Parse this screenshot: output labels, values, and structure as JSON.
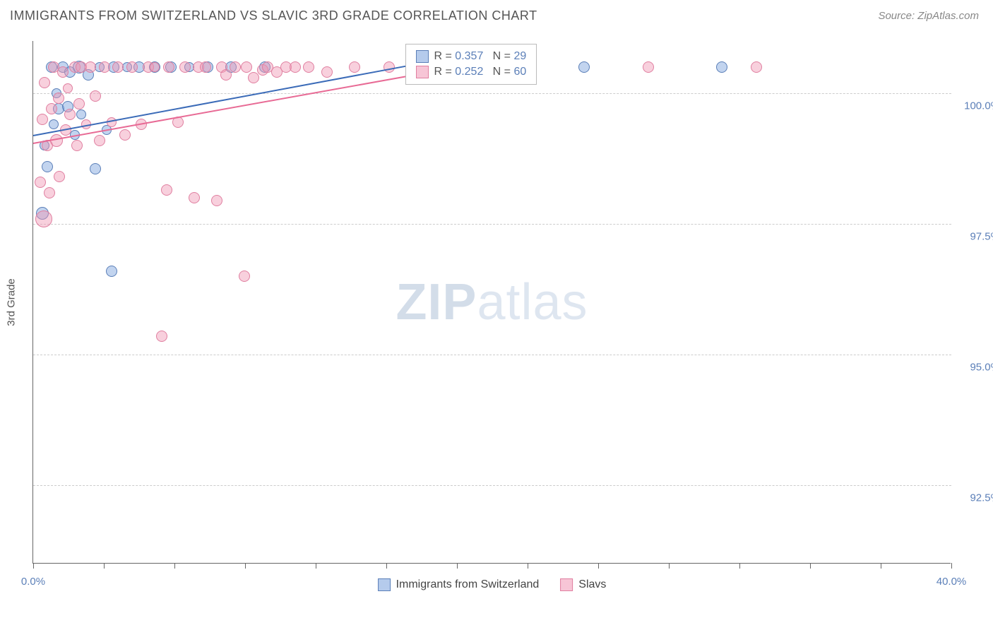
{
  "title": "IMMIGRANTS FROM SWITZERLAND VS SLAVIC 3RD GRADE CORRELATION CHART",
  "source": "Source: ZipAtlas.com",
  "ylabel": "3rd Grade",
  "watermark_a": "ZIP",
  "watermark_b": "atlas",
  "chart": {
    "type": "scatter",
    "xlim": [
      0,
      40
    ],
    "ylim": [
      91,
      101
    ],
    "x_axis_label_min": "0.0%",
    "x_axis_label_max": "40.0%",
    "yticks": [
      {
        "v": 100.0,
        "label": "100.0%"
      },
      {
        "v": 97.5,
        "label": "97.5%"
      },
      {
        "v": 95.0,
        "label": "95.0%"
      },
      {
        "v": 92.5,
        "label": "92.5%"
      }
    ],
    "xtick_positions": [
      0,
      3.08,
      6.15,
      9.23,
      12.31,
      15.38,
      18.46,
      21.54,
      24.62,
      27.69,
      30.77,
      33.85,
      36.92,
      40
    ],
    "grid_color": "#cccccc",
    "axis_color": "#666666",
    "background_color": "#ffffff",
    "label_fontsize": 15,
    "title_fontsize": 18
  },
  "series": [
    {
      "name": "Immigrants from Switzerland",
      "color_fill": "rgba(120,160,220,0.45)",
      "color_stroke": "#5b7fb8",
      "trend_color": "#3b6bb8",
      "R": "0.357",
      "N": "29",
      "trend": {
        "x1": 0,
        "y1": 99.2,
        "x2": 16.5,
        "y2": 100.55
      },
      "points": [
        {
          "x": 0.4,
          "y": 97.7,
          "r": 9
        },
        {
          "x": 0.5,
          "y": 99.0,
          "r": 7
        },
        {
          "x": 0.6,
          "y": 98.6,
          "r": 8
        },
        {
          "x": 0.8,
          "y": 100.5,
          "r": 8
        },
        {
          "x": 0.9,
          "y": 99.4,
          "r": 7
        },
        {
          "x": 1.0,
          "y": 100.0,
          "r": 7
        },
        {
          "x": 1.1,
          "y": 99.7,
          "r": 8
        },
        {
          "x": 1.3,
          "y": 100.5,
          "r": 8
        },
        {
          "x": 1.5,
          "y": 99.75,
          "r": 8
        },
        {
          "x": 1.6,
          "y": 100.4,
          "r": 8
        },
        {
          "x": 1.8,
          "y": 99.2,
          "r": 7
        },
        {
          "x": 2.0,
          "y": 100.5,
          "r": 9
        },
        {
          "x": 2.1,
          "y": 99.6,
          "r": 7
        },
        {
          "x": 2.4,
          "y": 100.35,
          "r": 8
        },
        {
          "x": 2.7,
          "y": 98.55,
          "r": 8
        },
        {
          "x": 2.9,
          "y": 100.5,
          "r": 7
        },
        {
          "x": 3.2,
          "y": 99.3,
          "r": 7
        },
        {
          "x": 3.4,
          "y": 96.6,
          "r": 8
        },
        {
          "x": 3.5,
          "y": 100.5,
          "r": 8
        },
        {
          "x": 4.1,
          "y": 100.5,
          "r": 7
        },
        {
          "x": 4.6,
          "y": 100.5,
          "r": 8
        },
        {
          "x": 5.3,
          "y": 100.5,
          "r": 8
        },
        {
          "x": 6.0,
          "y": 100.5,
          "r": 8
        },
        {
          "x": 6.8,
          "y": 100.5,
          "r": 7
        },
        {
          "x": 7.6,
          "y": 100.5,
          "r": 8
        },
        {
          "x": 8.6,
          "y": 100.5,
          "r": 8
        },
        {
          "x": 10.1,
          "y": 100.5,
          "r": 8
        },
        {
          "x": 24.0,
          "y": 100.5,
          "r": 8
        },
        {
          "x": 30.0,
          "y": 100.5,
          "r": 8
        }
      ]
    },
    {
      "name": "Slavs",
      "color_fill": "rgba(240,150,180,0.45)",
      "color_stroke": "#e07fa0",
      "trend_color": "#e86a95",
      "R": "0.252",
      "N": "60",
      "trend": {
        "x1": 0,
        "y1": 99.05,
        "x2": 16.5,
        "y2": 100.35
      },
      "points": [
        {
          "x": 0.3,
          "y": 98.3,
          "r": 8
        },
        {
          "x": 0.4,
          "y": 99.5,
          "r": 8
        },
        {
          "x": 0.45,
          "y": 97.6,
          "r": 12
        },
        {
          "x": 0.5,
          "y": 100.2,
          "r": 8
        },
        {
          "x": 0.6,
          "y": 99.0,
          "r": 8
        },
        {
          "x": 0.7,
          "y": 98.1,
          "r": 8
        },
        {
          "x": 0.8,
          "y": 99.7,
          "r": 8
        },
        {
          "x": 0.9,
          "y": 100.5,
          "r": 8
        },
        {
          "x": 1.0,
          "y": 99.1,
          "r": 9
        },
        {
          "x": 1.1,
          "y": 99.9,
          "r": 8
        },
        {
          "x": 1.15,
          "y": 98.4,
          "r": 8
        },
        {
          "x": 1.3,
          "y": 100.4,
          "r": 8
        },
        {
          "x": 1.4,
          "y": 99.3,
          "r": 8
        },
        {
          "x": 1.5,
          "y": 100.1,
          "r": 7
        },
        {
          "x": 1.6,
          "y": 99.6,
          "r": 8
        },
        {
          "x": 1.8,
          "y": 100.5,
          "r": 8
        },
        {
          "x": 1.9,
          "y": 99.0,
          "r": 8
        },
        {
          "x": 2.0,
          "y": 99.8,
          "r": 8
        },
        {
          "x": 2.1,
          "y": 100.5,
          "r": 8
        },
        {
          "x": 2.3,
          "y": 99.4,
          "r": 7
        },
        {
          "x": 2.5,
          "y": 100.5,
          "r": 8
        },
        {
          "x": 2.7,
          "y": 99.95,
          "r": 8
        },
        {
          "x": 2.9,
          "y": 99.1,
          "r": 8
        },
        {
          "x": 3.1,
          "y": 100.5,
          "r": 8
        },
        {
          "x": 3.4,
          "y": 99.45,
          "r": 7
        },
        {
          "x": 3.7,
          "y": 100.5,
          "r": 8
        },
        {
          "x": 4.0,
          "y": 99.2,
          "r": 8
        },
        {
          "x": 4.3,
          "y": 100.5,
          "r": 8
        },
        {
          "x": 4.7,
          "y": 99.4,
          "r": 8
        },
        {
          "x": 5.0,
          "y": 100.5,
          "r": 8
        },
        {
          "x": 5.3,
          "y": 100.5,
          "r": 7
        },
        {
          "x": 5.6,
          "y": 95.35,
          "r": 8
        },
        {
          "x": 5.8,
          "y": 98.15,
          "r": 8
        },
        {
          "x": 5.9,
          "y": 100.5,
          "r": 8
        },
        {
          "x": 6.3,
          "y": 99.45,
          "r": 8
        },
        {
          "x": 6.6,
          "y": 100.5,
          "r": 8
        },
        {
          "x": 7.0,
          "y": 98.0,
          "r": 8
        },
        {
          "x": 7.2,
          "y": 100.5,
          "r": 8
        },
        {
          "x": 7.5,
          "y": 100.5,
          "r": 8
        },
        {
          "x": 8.0,
          "y": 97.95,
          "r": 8
        },
        {
          "x": 8.2,
          "y": 100.5,
          "r": 8
        },
        {
          "x": 8.4,
          "y": 100.35,
          "r": 8
        },
        {
          "x": 8.8,
          "y": 100.5,
          "r": 8
        },
        {
          "x": 9.2,
          "y": 96.5,
          "r": 8
        },
        {
          "x": 9.3,
          "y": 100.5,
          "r": 8
        },
        {
          "x": 9.6,
          "y": 100.3,
          "r": 8
        },
        {
          "x": 10.0,
          "y": 100.45,
          "r": 8
        },
        {
          "x": 10.2,
          "y": 100.5,
          "r": 8
        },
        {
          "x": 10.6,
          "y": 100.4,
          "r": 8
        },
        {
          "x": 11.0,
          "y": 100.5,
          "r": 8
        },
        {
          "x": 11.4,
          "y": 100.5,
          "r": 8
        },
        {
          "x": 12.0,
          "y": 100.5,
          "r": 8
        },
        {
          "x": 12.8,
          "y": 100.4,
          "r": 8
        },
        {
          "x": 14.0,
          "y": 100.5,
          "r": 8
        },
        {
          "x": 15.5,
          "y": 100.5,
          "r": 8
        },
        {
          "x": 17.5,
          "y": 100.5,
          "r": 8
        },
        {
          "x": 19.5,
          "y": 100.4,
          "r": 8
        },
        {
          "x": 21.5,
          "y": 100.5,
          "r": 8
        },
        {
          "x": 26.8,
          "y": 100.5,
          "r": 8
        },
        {
          "x": 31.5,
          "y": 100.5,
          "r": 8
        }
      ]
    }
  ],
  "legend": {
    "rows": [
      {
        "swatch_fill": "rgba(120,160,220,0.55)",
        "swatch_stroke": "#5b7fb8",
        "R_label": "R = ",
        "R": "0.357",
        "N_label": "N = ",
        "N": "29"
      },
      {
        "swatch_fill": "rgba(240,150,180,0.55)",
        "swatch_stroke": "#e07fa0",
        "R_label": "R = ",
        "R": "0.252",
        "N_label": "N = ",
        "N": "60"
      }
    ]
  },
  "bottom_legend": [
    {
      "swatch_fill": "rgba(120,160,220,0.55)",
      "swatch_stroke": "#5b7fb8",
      "label": "Immigrants from Switzerland"
    },
    {
      "swatch_fill": "rgba(240,150,180,0.55)",
      "swatch_stroke": "#e07fa0",
      "label": "Slavs"
    }
  ]
}
